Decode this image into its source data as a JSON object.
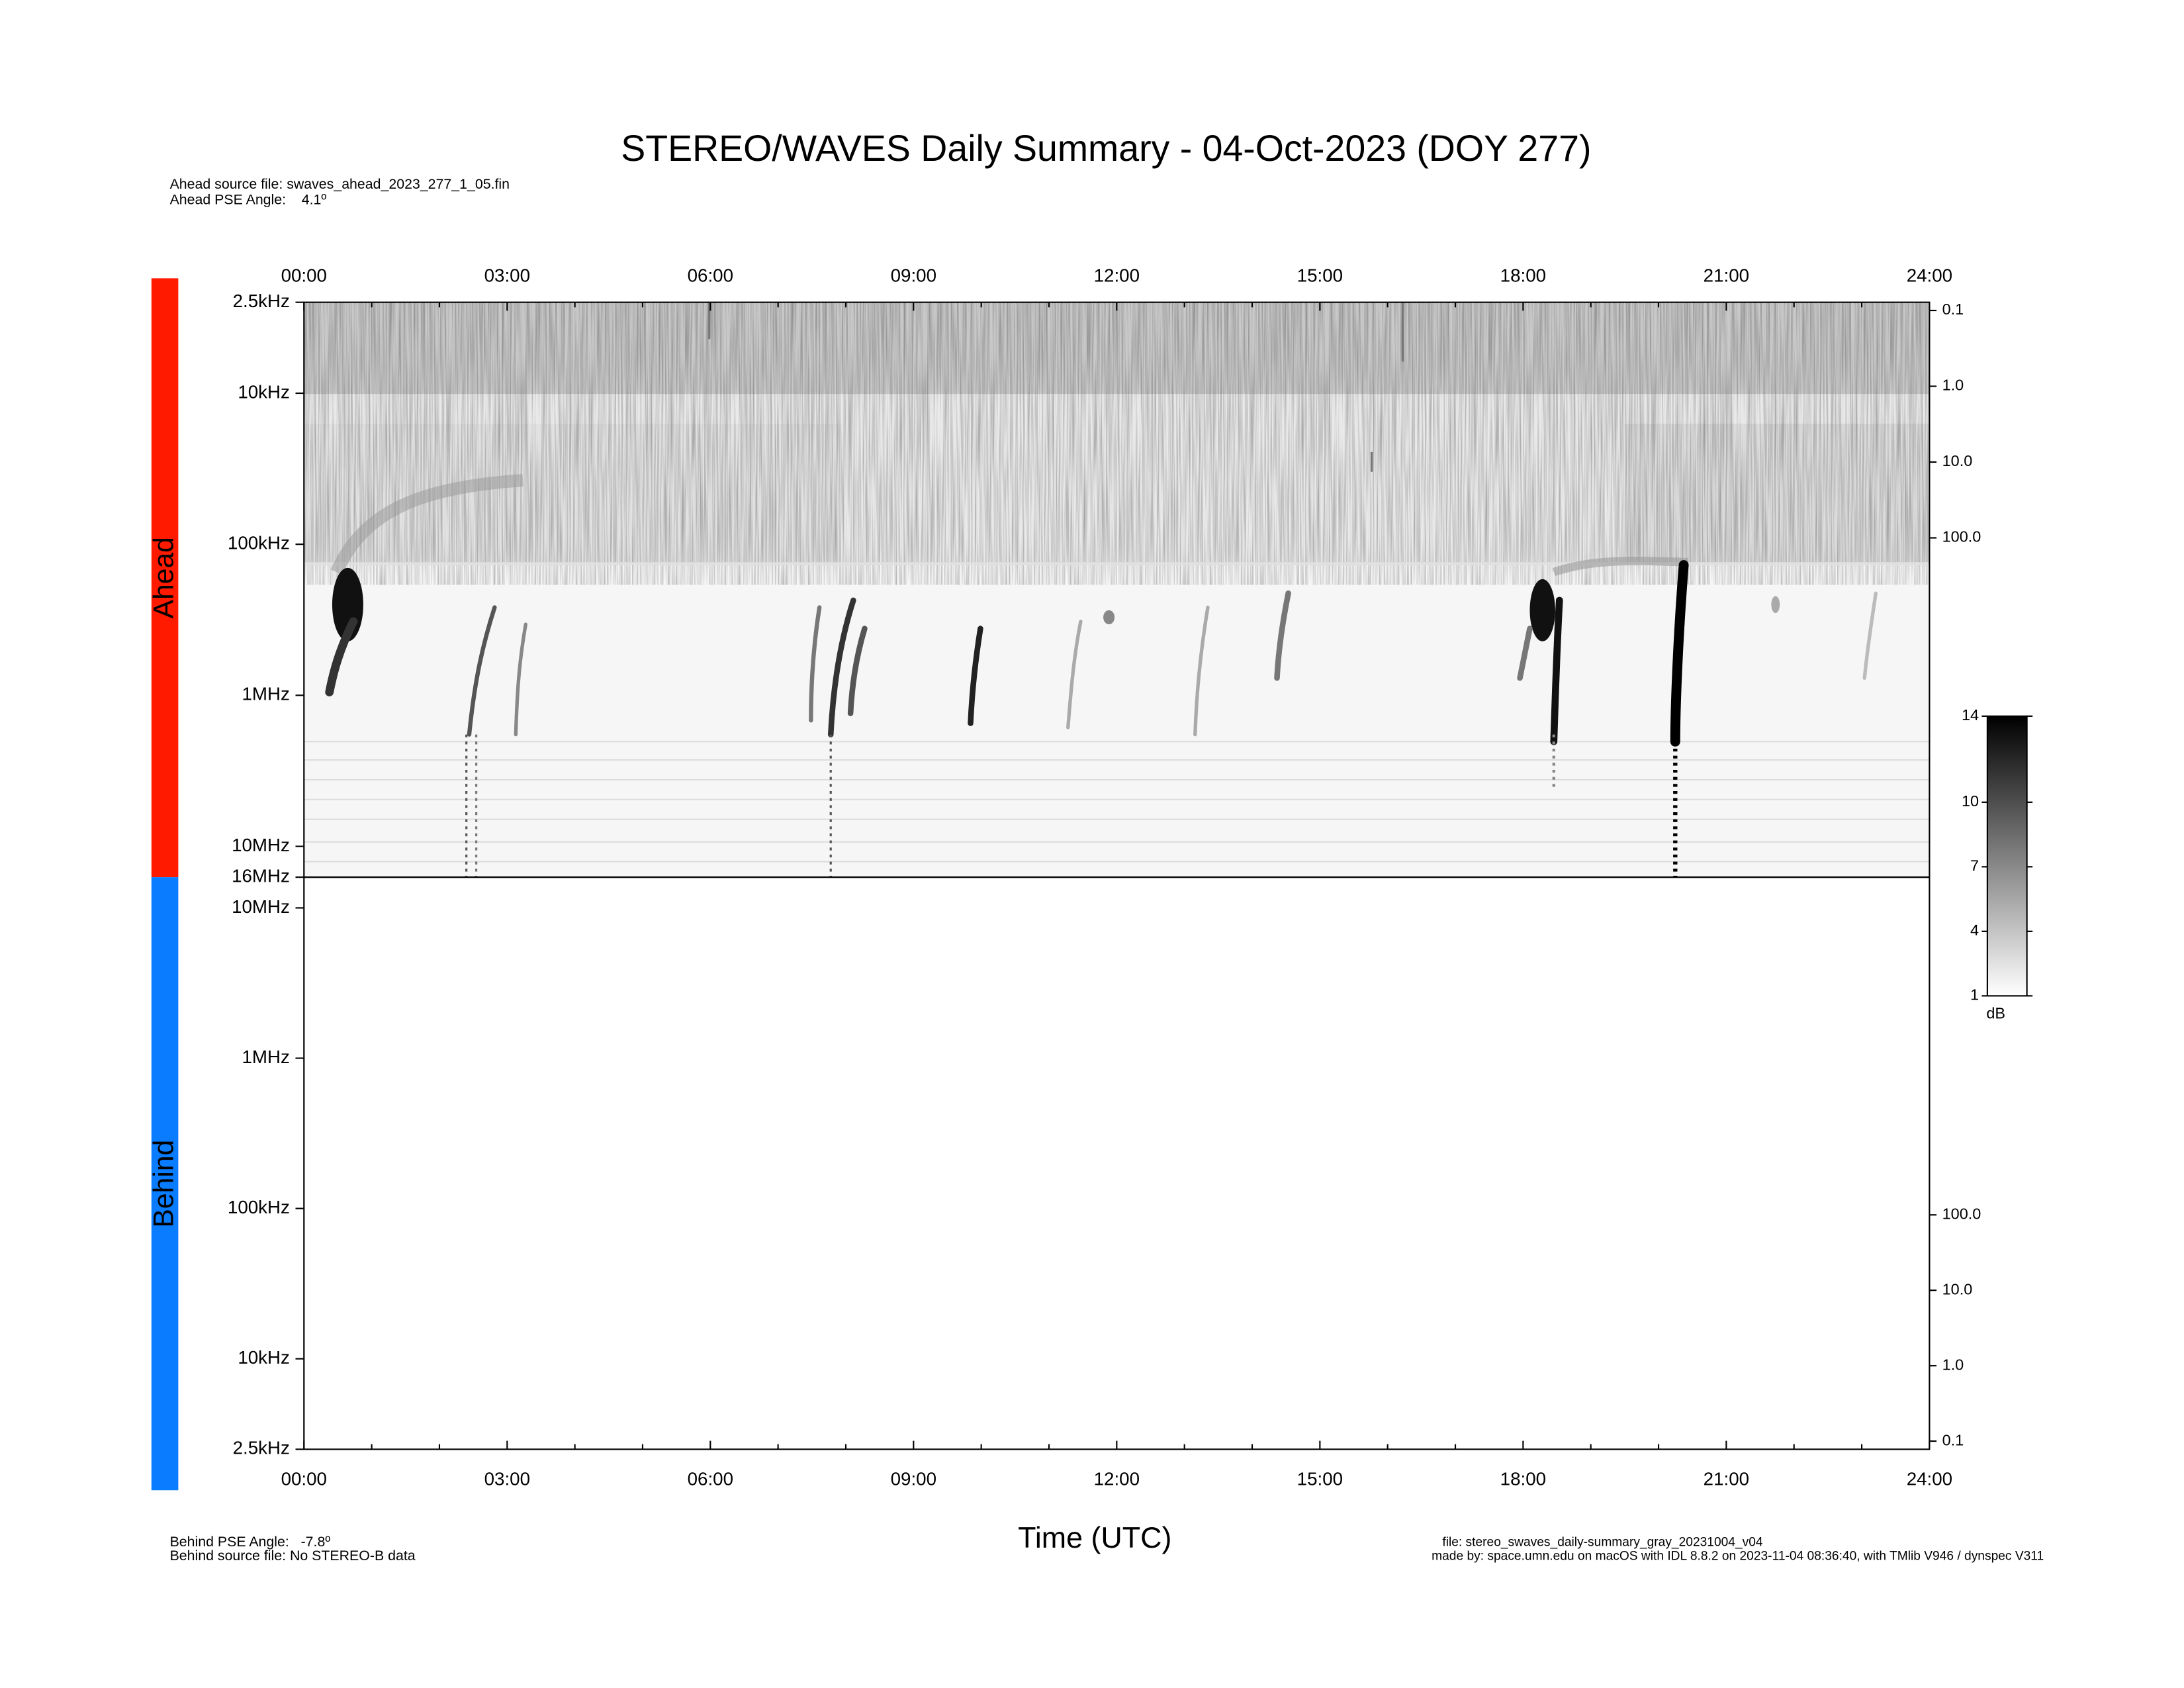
{
  "title": "STEREO/WAVES Daily Summary - 04-Oct-2023 (DOY 277)",
  "header": {
    "ahead_source": "Ahead source file: swaves_ahead_2023_277_1_05.fin",
    "ahead_pse": "Ahead PSE Angle:    4.1º"
  },
  "footer": {
    "behind_pse": "Behind PSE Angle:   -7.8º",
    "behind_source": "Behind source file: No STEREO-B data",
    "x_label": "Time (UTC)",
    "file": "file: stereo_swaves_daily-summary_gray_20231004_v04",
    "made_by": "made by: space.umn.edu on macOS with IDL 8.8.2 on 2023-11-04 08:36:40, with TMlib V946 / dynspec V311"
  },
  "chart_data": [
    {
      "type": "heatmap",
      "name": "Ahead",
      "color": "#ff1a00",
      "xlim": [
        0,
        24
      ],
      "xticks": [
        {
          "value": 0,
          "label": "00:00"
        },
        {
          "value": 3,
          "label": "03:00"
        },
        {
          "value": 6,
          "label": "06:00"
        },
        {
          "value": 9,
          "label": "09:00"
        },
        {
          "value": 12,
          "label": "12:00"
        },
        {
          "value": 15,
          "label": "15:00"
        },
        {
          "value": 18,
          "label": "18:00"
        },
        {
          "value": 21,
          "label": "21:00"
        },
        {
          "value": 24,
          "label": "24:00"
        }
      ],
      "ylim": [
        2500,
        16000000
      ],
      "yscale": "log",
      "yinvert": true,
      "yticks": [
        {
          "value": 2500,
          "label": "2.5kHz"
        },
        {
          "value": 10000,
          "label": "10kHz"
        },
        {
          "value": 100000,
          "label": "100kHz"
        },
        {
          "value": 1000000,
          "label": "1MHz"
        },
        {
          "value": 10000000,
          "label": "10MHz"
        },
        {
          "value": 16000000,
          "label": "16MHz"
        }
      ],
      "y2lim": [
        0.078,
        3000000
      ],
      "y2scale": "log",
      "y2ticks": [
        0.1,
        {
          "value": 1,
          "label": "1.0"
        },
        {
          "value": 10,
          "label": "10.0"
        },
        {
          "value": 100,
          "label": "100.0"
        }
      ]
    },
    {
      "type": "heatmap",
      "name": "Behind",
      "color": "#0a7cff",
      "xlim": [
        0,
        24
      ],
      "xticks": [
        {
          "value": 0,
          "label": "00:00"
        },
        {
          "value": 3,
          "label": "03:00"
        },
        {
          "value": 6,
          "label": "06:00"
        },
        {
          "value": 9,
          "label": "09:00"
        },
        {
          "value": 12,
          "label": "12:00"
        },
        {
          "value": 15,
          "label": "15:00"
        },
        {
          "value": 18,
          "label": "18:00"
        },
        {
          "value": 21,
          "label": "21:00"
        },
        {
          "value": 24,
          "label": "24:00"
        }
      ],
      "ylim": [
        2500,
        16000000
      ],
      "yscale": "log",
      "yinvert": false,
      "yticks": [
        {
          "value": 2500,
          "label": "2.5kHz"
        },
        {
          "value": 10000,
          "label": "10kHz"
        },
        {
          "value": 100000,
          "label": "100kHz"
        },
        {
          "value": 1000000,
          "label": "1MHz"
        },
        {
          "value": 10000000,
          "label": "10MHz"
        }
      ],
      "y2lim": [
        0.078,
        3000000
      ],
      "y2scale": "log",
      "y2ticks": [
        0.1,
        {
          "value": 1,
          "label": "1.0"
        },
        {
          "value": 10,
          "label": "10.0"
        },
        {
          "value": 100,
          "label": "100.0"
        }
      ]
    }
  ],
  "colorbar": {
    "label": "dB",
    "lim": [
      1,
      14
    ],
    "ticks": [
      1,
      4,
      7,
      10,
      14
    ]
  }
}
